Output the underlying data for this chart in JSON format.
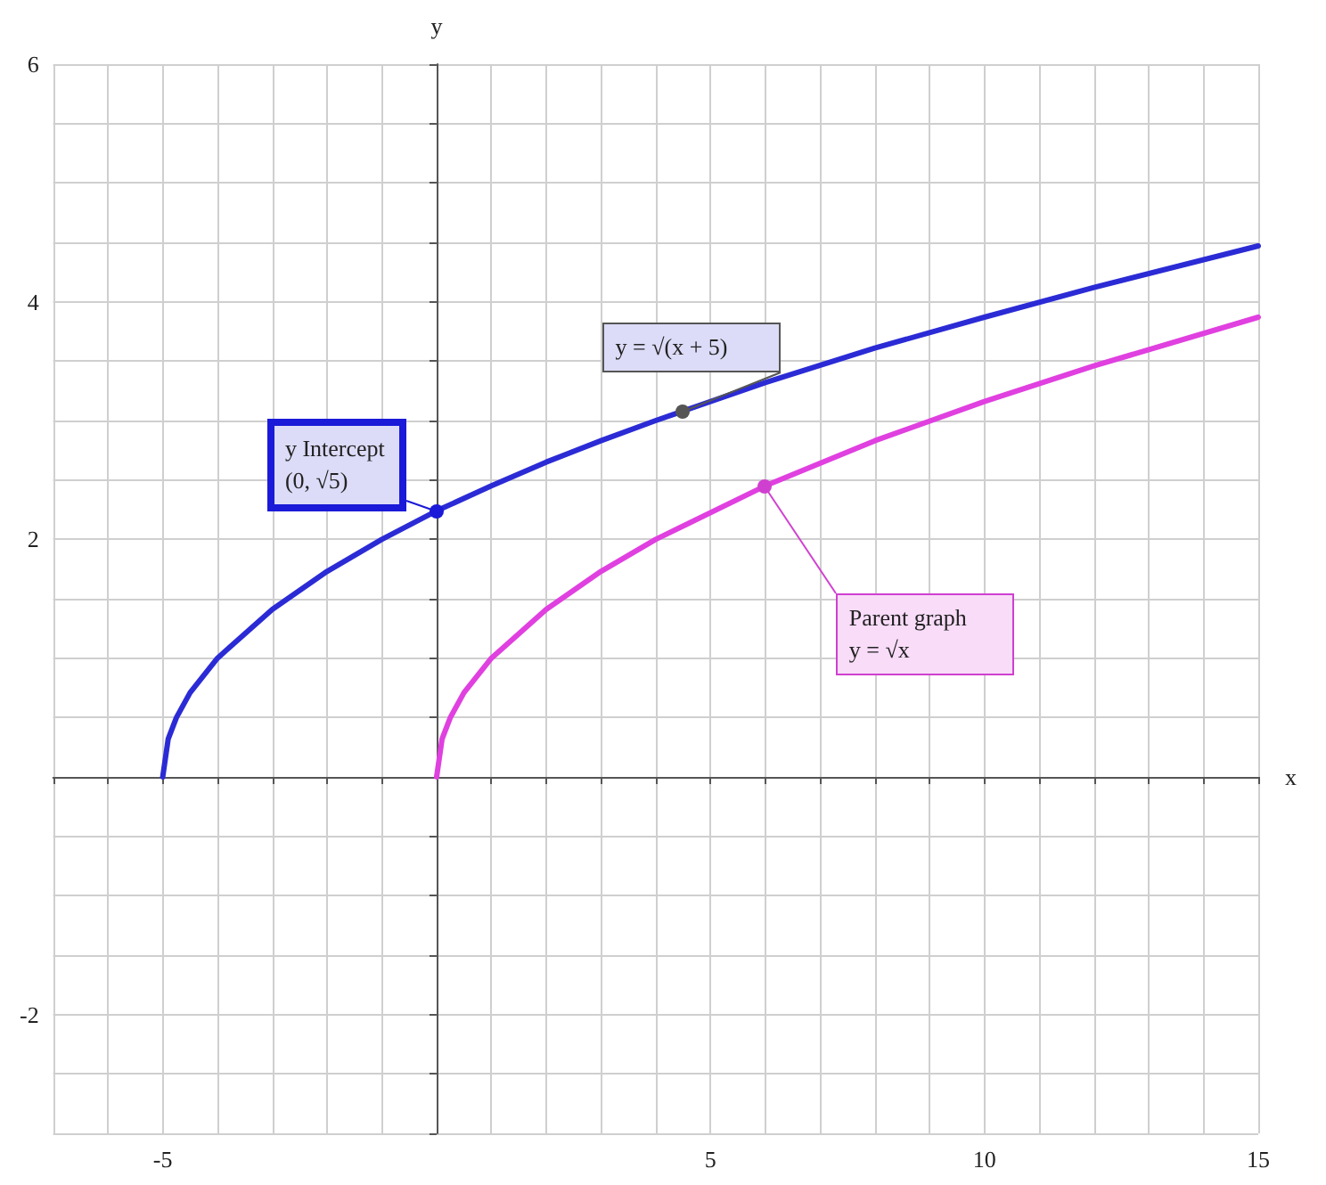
{
  "chart_data": {
    "type": "line",
    "xlabel": "x",
    "ylabel": "y",
    "xlim": [
      -7,
      15
    ],
    "ylim": [
      -3,
      6
    ],
    "xticks": [
      {
        "value": -7,
        "label": null
      },
      {
        "value": -6,
        "label": null
      },
      -5,
      {
        "value": -4,
        "label": null
      },
      {
        "value": -3,
        "label": null
      },
      {
        "value": -2,
        "label": null
      },
      {
        "value": -1,
        "label": null
      },
      {
        "value": 0,
        "label": null
      },
      {
        "value": 1,
        "label": null
      },
      {
        "value": 2,
        "label": null
      },
      {
        "value": 3,
        "label": null
      },
      {
        "value": 4,
        "label": null
      },
      5,
      {
        "value": 6,
        "label": null
      },
      {
        "value": 7,
        "label": null
      },
      {
        "value": 8,
        "label": null
      },
      {
        "value": 9,
        "label": null
      },
      10,
      {
        "value": 11,
        "label": null
      },
      {
        "value": 12,
        "label": null
      },
      {
        "value": 13,
        "label": null
      },
      {
        "value": 14,
        "label": null
      },
      15
    ],
    "yticks": [
      {
        "value": -3,
        "label": null
      },
      {
        "value": -2.5,
        "label": null
      },
      -2,
      {
        "value": -1.5,
        "label": null
      },
      {
        "value": -1,
        "label": null
      },
      {
        "value": -0.5,
        "label": null
      },
      {
        "value": 0,
        "label": null
      },
      {
        "value": 0.5,
        "label": null
      },
      {
        "value": 1,
        "label": null
      },
      {
        "value": 1.5,
        "label": null
      },
      2,
      {
        "value": 2.5,
        "label": null
      },
      {
        "value": 3,
        "label": null
      },
      {
        "value": 3.5,
        "label": null
      },
      4,
      {
        "value": 4.5,
        "label": null
      },
      {
        "value": 5,
        "label": null
      },
      {
        "value": 5.5,
        "label": null
      },
      6
    ],
    "grid": true,
    "marker": "none",
    "line_style": "solid",
    "series": [
      {
        "color": "#2b2bd6",
        "x": [
          -5,
          -4.9,
          -4.75,
          -4.5,
          -4,
          -3,
          -2,
          -1,
          0,
          1,
          2,
          3,
          4,
          6,
          8,
          10,
          12,
          15
        ],
        "values": [
          0,
          0.32,
          0.5,
          0.71,
          1,
          1.41,
          1.73,
          2,
          2.24,
          2.45,
          2.65,
          2.83,
          3,
          3.32,
          3.61,
          3.87,
          4.12,
          4.47
        ]
      },
      {
        "color": "#e040e0",
        "x": [
          0,
          0.1,
          0.25,
          0.5,
          1,
          2,
          3,
          4,
          6,
          8,
          10,
          12,
          15
        ],
        "values": [
          0,
          0.32,
          0.5,
          0.71,
          1,
          1.41,
          1.73,
          2,
          2.45,
          2.83,
          3.16,
          3.46,
          3.87
        ]
      }
    ],
    "annotations": [
      {
        "text": "y Intercept\n(0, √5)",
        "x": 0,
        "y": 2.24
      },
      {
        "text": "y = √(x + 5)",
        "x": 4.5,
        "y": 3.08
      },
      {
        "text": "Parent graph\ny = √x",
        "x": 6,
        "y": 2.45
      }
    ]
  }
}
